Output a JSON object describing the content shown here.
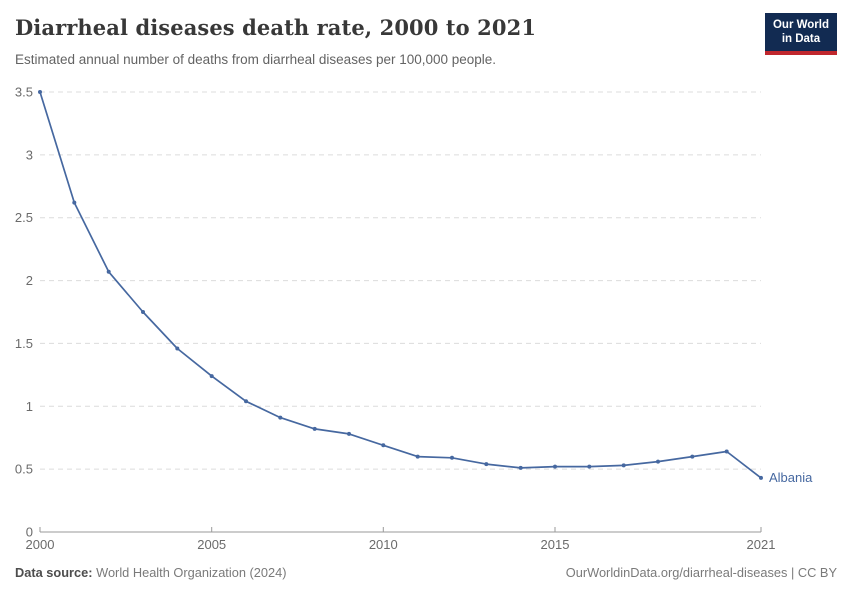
{
  "logo": {
    "line1": "Our World",
    "line2": "in Data",
    "bg_color": "#122B52",
    "stripe_color": "#C0272D"
  },
  "chart_data": {
    "type": "line",
    "title": "Diarrheal diseases death rate, 2000 to 2021",
    "subtitle": "Estimated annual number of deaths from diarrheal diseases per 100,000 people.",
    "x": [
      2000,
      2001,
      2002,
      2003,
      2004,
      2005,
      2006,
      2007,
      2008,
      2009,
      2010,
      2011,
      2012,
      2013,
      2014,
      2015,
      2016,
      2017,
      2018,
      2019,
      2020,
      2021
    ],
    "series": [
      {
        "name": "Albania",
        "color": "#4668A0",
        "values": [
          3.5,
          2.62,
          2.07,
          1.75,
          1.46,
          1.24,
          1.04,
          0.91,
          0.82,
          0.78,
          0.69,
          0.6,
          0.59,
          0.54,
          0.51,
          0.52,
          0.52,
          0.53,
          0.56,
          0.6,
          0.64,
          0.43
        ]
      }
    ],
    "xlim": [
      2000,
      2021
    ],
    "ylim": [
      0,
      3.5
    ],
    "x_ticks": [
      2000,
      2005,
      2010,
      2015,
      2021
    ],
    "y_ticks": [
      0,
      0.5,
      1,
      1.5,
      2,
      2.5,
      3,
      3.5
    ],
    "grid": "horizontal-dashed",
    "legend": "end-of-line-label",
    "marker": "circle",
    "colors": {
      "grid": "#dcdcdc",
      "axis": "#9a9a9a",
      "tick_text": "#6b6b6b"
    }
  },
  "footer": {
    "source_label": "Data source:",
    "source_text": "World Health Organization (2024)",
    "credit": "OurWorldinData.org/diarrheal-diseases | CC BY"
  }
}
